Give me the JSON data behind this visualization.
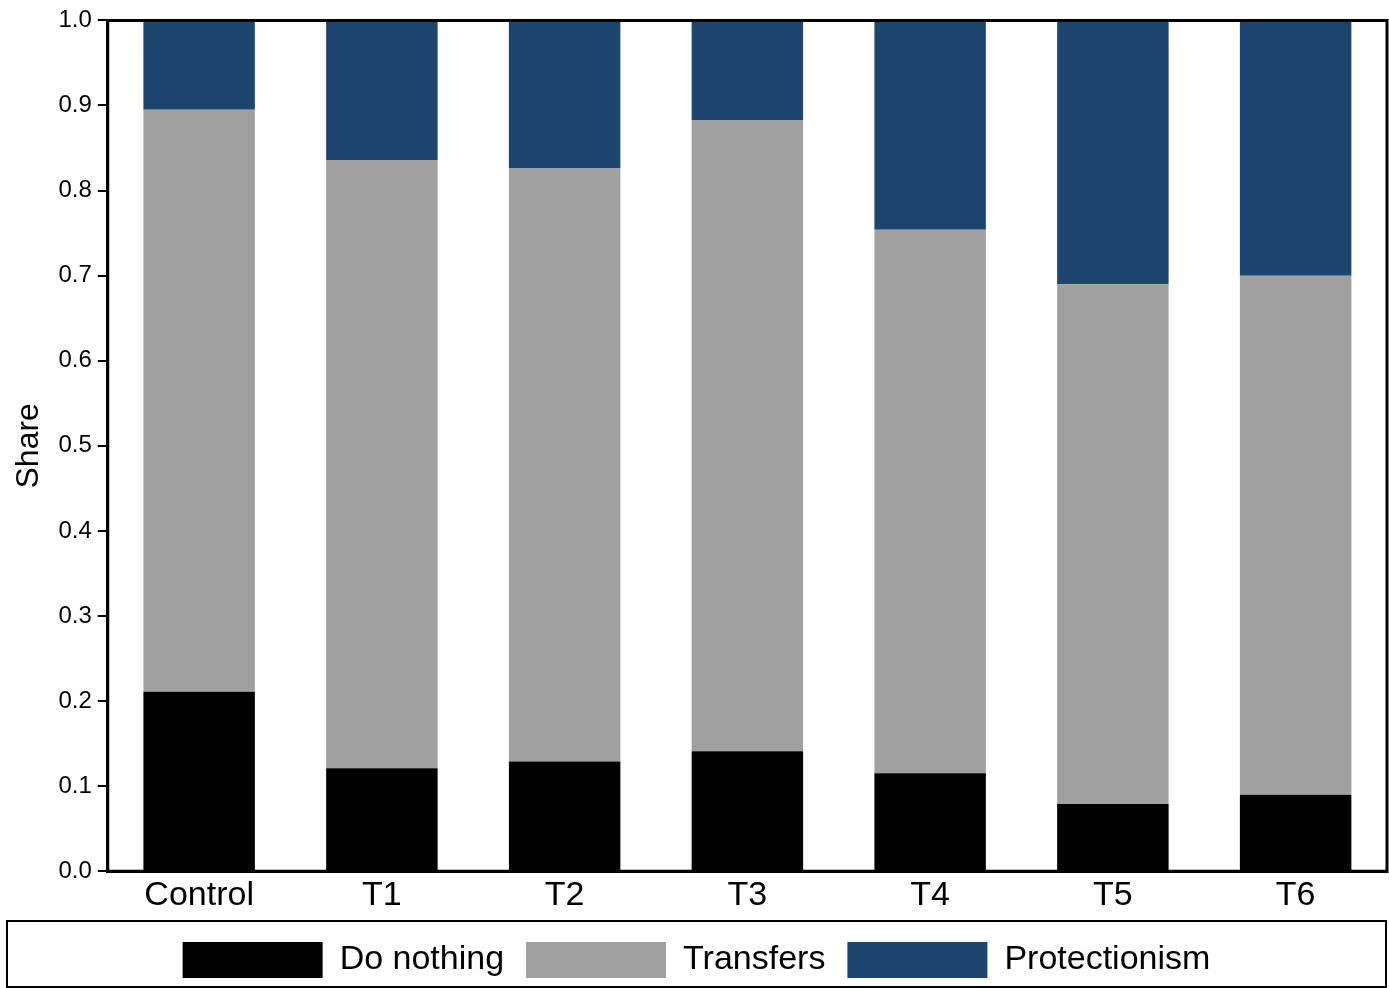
{
  "chart_data": {
    "type": "bar",
    "stacked": true,
    "ylabel": "Share",
    "categories": [
      "Control",
      "T1",
      "T2",
      "T3",
      "T4",
      "T5",
      "T6"
    ],
    "series": [
      {
        "name": "Do nothing",
        "color": "#000000",
        "values": [
          0.211,
          0.121,
          0.129,
          0.141,
          0.115,
          0.079,
          0.09
        ]
      },
      {
        "name": "Transfers",
        "color": "#a0a0a0",
        "values": [
          0.684,
          0.715,
          0.697,
          0.742,
          0.639,
          0.611,
          0.61
        ]
      },
      {
        "name": "Protectionism",
        "color": "#1c466e",
        "values": [
          0.105,
          0.164,
          0.174,
          0.117,
          0.246,
          0.31,
          0.3
        ]
      }
    ],
    "ylim": [
      0,
      1
    ],
    "yticks": [
      {
        "value": 0,
        "label": "0.0"
      },
      {
        "value": 0.1,
        "label": "0.1"
      },
      {
        "value": 0.2,
        "label": "0.2"
      },
      {
        "value": 0.3,
        "label": "0.3"
      },
      {
        "value": 0.4,
        "label": "0.4"
      },
      {
        "value": 0.5,
        "label": "0.5"
      },
      {
        "value": 0.6,
        "label": "0.6"
      },
      {
        "value": 0.7,
        "label": "0.7"
      },
      {
        "value": 0.8,
        "label": "0.8"
      },
      {
        "value": 0.9,
        "label": "0.9"
      },
      {
        "value": 1,
        "label": "1.0"
      }
    ],
    "grid": false,
    "legend": "bottom"
  }
}
